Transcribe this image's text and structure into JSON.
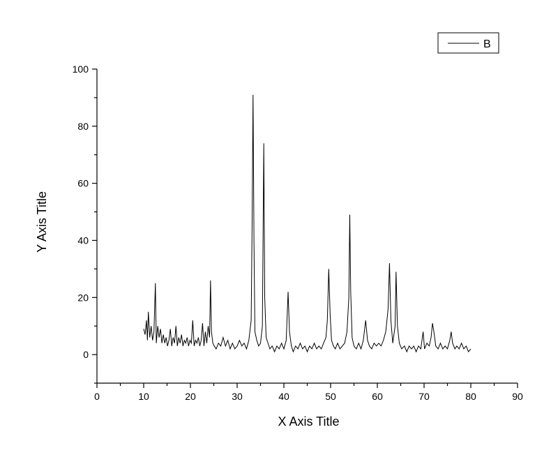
{
  "chart_data": {
    "type": "line",
    "xlabel": "X Axis Title",
    "ylabel": "Y Axis Title",
    "xlim": [
      0,
      90
    ],
    "ylim": [
      -10,
      100
    ],
    "x_ticks": [
      "0",
      "10",
      "20",
      "30",
      "40",
      "50",
      "60",
      "70",
      "80",
      "90"
    ],
    "y_ticks": [
      "0",
      "20",
      "40",
      "60",
      "80",
      "100"
    ],
    "grid": false,
    "legend": {
      "placement": "top-right",
      "entries": [
        "B"
      ]
    },
    "series": [
      {
        "name": "B",
        "color": "#000000",
        "points": [
          [
            10,
            9
          ],
          [
            10.3,
            7
          ],
          [
            10.6,
            12
          ],
          [
            10.8,
            5
          ],
          [
            11,
            15
          ],
          [
            11.3,
            6
          ],
          [
            11.6,
            10
          ],
          [
            11.9,
            5
          ],
          [
            12.2,
            8
          ],
          [
            12.5,
            25
          ],
          [
            12.7,
            4
          ],
          [
            13,
            10
          ],
          [
            13.3,
            6
          ],
          [
            13.6,
            9
          ],
          [
            13.9,
            4
          ],
          [
            14.2,
            7
          ],
          [
            14.5,
            4
          ],
          [
            14.8,
            6
          ],
          [
            15.1,
            3
          ],
          [
            15.4,
            5
          ],
          [
            15.7,
            9
          ],
          [
            16,
            3
          ],
          [
            16.3,
            6
          ],
          [
            16.6,
            4
          ],
          [
            16.9,
            10
          ],
          [
            17.2,
            3
          ],
          [
            17.5,
            6
          ],
          [
            17.8,
            4
          ],
          [
            18.1,
            7
          ],
          [
            18.4,
            3
          ],
          [
            18.7,
            5
          ],
          [
            19,
            4
          ],
          [
            19.3,
            6
          ],
          [
            19.6,
            3
          ],
          [
            19.9,
            5
          ],
          [
            20.2,
            4
          ],
          [
            20.5,
            12
          ],
          [
            20.8,
            3
          ],
          [
            21.1,
            5
          ],
          [
            21.4,
            4
          ],
          [
            21.7,
            6
          ],
          [
            22,
            3
          ],
          [
            22.3,
            5
          ],
          [
            22.6,
            11
          ],
          [
            22.9,
            3
          ],
          [
            23.2,
            8
          ],
          [
            23.5,
            4
          ],
          [
            23.8,
            10
          ],
          [
            24.1,
            6
          ],
          [
            24.3,
            26
          ],
          [
            24.5,
            8
          ],
          [
            24.8,
            4
          ],
          [
            25.1,
            3
          ],
          [
            25.5,
            2
          ],
          [
            26,
            4
          ],
          [
            26.5,
            3
          ],
          [
            27,
            6
          ],
          [
            27.5,
            3
          ],
          [
            28,
            5
          ],
          [
            28.5,
            2
          ],
          [
            29,
            4
          ],
          [
            29.5,
            2
          ],
          [
            30,
            3
          ],
          [
            30.5,
            5
          ],
          [
            31,
            3
          ],
          [
            31.5,
            4
          ],
          [
            32,
            2
          ],
          [
            32.5,
            5
          ],
          [
            33,
            12
          ],
          [
            33.2,
            45
          ],
          [
            33.4,
            91
          ],
          [
            33.6,
            40
          ],
          [
            33.8,
            8
          ],
          [
            34.2,
            5
          ],
          [
            34.6,
            3
          ],
          [
            35,
            4
          ],
          [
            35.4,
            10
          ],
          [
            35.7,
            74
          ],
          [
            35.9,
            20
          ],
          [
            36.2,
            6
          ],
          [
            36.6,
            4
          ],
          [
            37,
            2
          ],
          [
            37.5,
            3
          ],
          [
            38,
            1
          ],
          [
            38.5,
            3
          ],
          [
            39,
            2
          ],
          [
            39.5,
            4
          ],
          [
            40,
            2
          ],
          [
            40.5,
            5
          ],
          [
            40.9,
            22
          ],
          [
            41.2,
            8
          ],
          [
            41.6,
            3
          ],
          [
            42,
            1
          ],
          [
            42.5,
            3
          ],
          [
            43,
            2
          ],
          [
            43.5,
            4
          ],
          [
            44,
            2
          ],
          [
            44.5,
            3
          ],
          [
            45,
            1
          ],
          [
            45.5,
            3
          ],
          [
            46,
            2
          ],
          [
            46.5,
            4
          ],
          [
            47,
            2
          ],
          [
            47.5,
            3
          ],
          [
            48,
            2
          ],
          [
            48.5,
            4
          ],
          [
            49,
            6
          ],
          [
            49.3,
            12
          ],
          [
            49.6,
            30
          ],
          [
            49.9,
            14
          ],
          [
            50.2,
            5
          ],
          [
            50.6,
            3
          ],
          [
            51,
            2
          ],
          [
            51.5,
            4
          ],
          [
            52,
            2
          ],
          [
            52.5,
            3
          ],
          [
            53,
            4
          ],
          [
            53.5,
            8
          ],
          [
            53.9,
            20
          ],
          [
            54.1,
            49
          ],
          [
            54.3,
            22
          ],
          [
            54.6,
            6
          ],
          [
            55,
            3
          ],
          [
            55.5,
            2
          ],
          [
            56,
            4
          ],
          [
            56.5,
            2
          ],
          [
            57,
            5
          ],
          [
            57.5,
            12
          ],
          [
            57.9,
            5
          ],
          [
            58.3,
            3
          ],
          [
            58.8,
            2
          ],
          [
            59.3,
            4
          ],
          [
            59.8,
            3
          ],
          [
            60.3,
            4
          ],
          [
            60.8,
            3
          ],
          [
            61.3,
            5
          ],
          [
            61.8,
            8
          ],
          [
            62.3,
            16
          ],
          [
            62.6,
            32
          ],
          [
            62.9,
            12
          ],
          [
            63.3,
            4
          ],
          [
            63.8,
            10
          ],
          [
            64,
            29
          ],
          [
            64.3,
            10
          ],
          [
            64.7,
            4
          ],
          [
            65.2,
            2
          ],
          [
            65.8,
            3
          ],
          [
            66.3,
            1
          ],
          [
            66.8,
            3
          ],
          [
            67.3,
            2
          ],
          [
            67.8,
            3
          ],
          [
            68.3,
            1
          ],
          [
            68.8,
            3
          ],
          [
            69.3,
            2
          ],
          [
            69.8,
            8
          ],
          [
            70.1,
            2
          ],
          [
            70.6,
            4
          ],
          [
            71.1,
            3
          ],
          [
            71.5,
            6
          ],
          [
            71.8,
            11
          ],
          [
            72.1,
            8
          ],
          [
            72.5,
            3
          ],
          [
            73,
            2
          ],
          [
            73.5,
            4
          ],
          [
            74,
            2
          ],
          [
            74.5,
            3
          ],
          [
            75,
            2
          ],
          [
            75.5,
            5
          ],
          [
            75.8,
            8
          ],
          [
            76.1,
            4
          ],
          [
            76.6,
            2
          ],
          [
            77,
            3
          ],
          [
            77.5,
            2
          ],
          [
            78,
            4
          ],
          [
            78.5,
            2
          ],
          [
            79,
            3
          ],
          [
            79.5,
            1
          ],
          [
            80,
            2
          ]
        ]
      }
    ]
  }
}
